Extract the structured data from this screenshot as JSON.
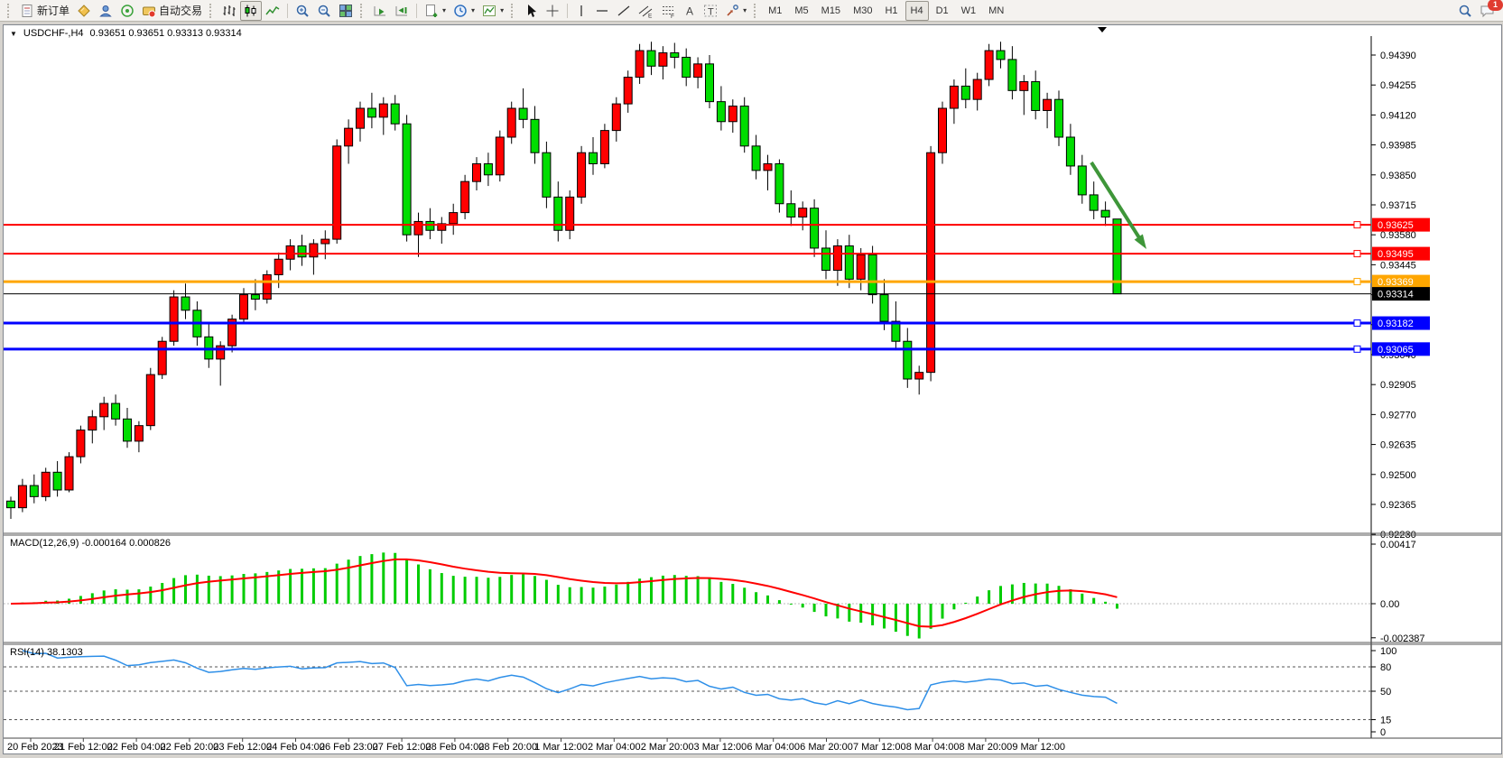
{
  "toolbar": {
    "new_order_label": "新订单",
    "auto_trading_label": "自动交易",
    "timeframes": [
      "M1",
      "M5",
      "M15",
      "M30",
      "H1",
      "H4",
      "D1",
      "W1",
      "MN"
    ],
    "active_timeframe": "H4",
    "chat_badge": "1",
    "icons": [
      "new-order",
      "market-watch",
      "profiles",
      "signals",
      "auto-trading",
      "bar-chart",
      "candlestick-chart",
      "line-chart",
      "zoom-in",
      "zoom-out",
      "tile-windows",
      "auto-scroll",
      "chart-shift",
      "new-chart",
      "periods-clock",
      "templates-indicators",
      "cursor",
      "crosshair",
      "vertical-line",
      "horizontal-line",
      "trendline",
      "equidistant-channel",
      "fibonacci-retracement",
      "text",
      "text-label",
      "arrows-objects",
      "search",
      "chat"
    ]
  },
  "chart": {
    "symbol_text": "USDCHF-,H4",
    "ohlc_text": "0.93651 0.93651 0.93313 0.93314"
  },
  "chart_data": {
    "type": "candlestick",
    "symbol": "USDCHF-",
    "timeframe": "H4",
    "current_candle": {
      "open": "0.93651",
      "high": "0.93651",
      "low": "0.93313",
      "close": "0.93314"
    },
    "price_scale": 100000,
    "colors": {
      "up_candle": "#ff0000",
      "down_candle": "#00dd00",
      "wick": "#000000",
      "macd_hist": "#00cc00",
      "macd_signal": "#ff0000",
      "rsi_line": "#2e8fe8",
      "arrow": "#3e9639",
      "axis_text": "#000000"
    },
    "price_axis": {
      "ticks": [
        "0.94390",
        "0.94255",
        "0.94120",
        "0.93985",
        "0.93850",
        "0.93715",
        "0.93580",
        "0.93445",
        "0.93310",
        "0.93175",
        "0.93040",
        "0.92905",
        "0.92770",
        "0.92635",
        "0.92500",
        "0.92365",
        "0.92230"
      ]
    },
    "hlines": [
      {
        "price": 93625,
        "tag": "0.93625",
        "color": "#ff0000",
        "width": 2,
        "handle": true
      },
      {
        "price": 93495,
        "tag": "0.93495",
        "color": "#ff0000",
        "width": 2,
        "handle": true
      },
      {
        "price": 93369,
        "tag": "0.93369",
        "color": "#ffa600",
        "width": 3,
        "handle": true
      },
      {
        "price": 93314,
        "tag": "0.93314",
        "color": "#000000",
        "width": 1,
        "handle": false,
        "current": true
      },
      {
        "price": 93182,
        "tag": "0.93182",
        "color": "#0000ff",
        "width": 3,
        "handle": true
      },
      {
        "price": 93065,
        "tag": "0.93065",
        "color": "#0000ff",
        "width": 3,
        "handle": true
      }
    ],
    "candles": [
      [
        92380,
        92400,
        92300,
        92350
      ],
      [
        92350,
        92480,
        92330,
        92450
      ],
      [
        92450,
        92500,
        92370,
        92400
      ],
      [
        92400,
        92530,
        92380,
        92510
      ],
      [
        92510,
        92560,
        92400,
        92430
      ],
      [
        92430,
        92600,
        92420,
        92580
      ],
      [
        92580,
        92720,
        92550,
        92700
      ],
      [
        92700,
        92790,
        92640,
        92760
      ],
      [
        92760,
        92850,
        92700,
        92820
      ],
      [
        92820,
        92860,
        92720,
        92750
      ],
      [
        92750,
        92800,
        92620,
        92650
      ],
      [
        92650,
        92740,
        92600,
        92720
      ],
      [
        92720,
        92980,
        92700,
        92950
      ],
      [
        92950,
        93120,
        92930,
        93100
      ],
      [
        93100,
        93330,
        93080,
        93300
      ],
      [
        93300,
        93360,
        93200,
        93240
      ],
      [
        93240,
        93280,
        93080,
        93120
      ],
      [
        93120,
        93180,
        92980,
        93020
      ],
      [
        93020,
        93100,
        92900,
        93080
      ],
      [
        93080,
        93220,
        93050,
        93200
      ],
      [
        93200,
        93340,
        93180,
        93310
      ],
      [
        93310,
        93380,
        93240,
        93290
      ],
      [
        93290,
        93420,
        93270,
        93400
      ],
      [
        93400,
        93500,
        93340,
        93470
      ],
      [
        93470,
        93560,
        93420,
        93530
      ],
      [
        93530,
        93580,
        93440,
        93480
      ],
      [
        93480,
        93560,
        93400,
        93540
      ],
      [
        93540,
        93600,
        93470,
        93560
      ],
      [
        93560,
        94010,
        93540,
        93980
      ],
      [
        93980,
        94100,
        93900,
        94060
      ],
      [
        94060,
        94180,
        94000,
        94150
      ],
      [
        94150,
        94220,
        94060,
        94110
      ],
      [
        94110,
        94200,
        94030,
        94170
      ],
      [
        94170,
        94210,
        94050,
        94080
      ],
      [
        94080,
        94120,
        93550,
        93580
      ],
      [
        93580,
        93680,
        93480,
        93640
      ],
      [
        93640,
        93700,
        93560,
        93600
      ],
      [
        93600,
        93660,
        93540,
        93630
      ],
      [
        93630,
        93720,
        93580,
        93680
      ],
      [
        93680,
        93850,
        93650,
        93820
      ],
      [
        93820,
        93930,
        93780,
        93900
      ],
      [
        93900,
        93950,
        93800,
        93850
      ],
      [
        93850,
        94050,
        93820,
        94020
      ],
      [
        94020,
        94180,
        93990,
        94150
      ],
      [
        94150,
        94240,
        94060,
        94100
      ],
      [
        94100,
        94160,
        93900,
        93950
      ],
      [
        93950,
        94000,
        93700,
        93750
      ],
      [
        93750,
        93820,
        93550,
        93600
      ],
      [
        93600,
        93780,
        93560,
        93750
      ],
      [
        93750,
        93980,
        93720,
        93950
      ],
      [
        93950,
        94020,
        93850,
        93900
      ],
      [
        93900,
        94080,
        93880,
        94050
      ],
      [
        94050,
        94200,
        94000,
        94170
      ],
      [
        94170,
        94320,
        94130,
        94290
      ],
      [
        94290,
        94440,
        94260,
        94410
      ],
      [
        94410,
        94450,
        94300,
        94340
      ],
      [
        94340,
        94430,
        94280,
        94400
      ],
      [
        94400,
        94445,
        94330,
        94380
      ],
      [
        94380,
        94420,
        94250,
        94290
      ],
      [
        94290,
        94380,
        94240,
        94350
      ],
      [
        94350,
        94390,
        94150,
        94180
      ],
      [
        94180,
        94250,
        94050,
        94090
      ],
      [
        94090,
        94190,
        94040,
        94160
      ],
      [
        94160,
        94200,
        93950,
        93980
      ],
      [
        93980,
        94030,
        93830,
        93870
      ],
      [
        93870,
        93940,
        93780,
        93900
      ],
      [
        93900,
        93920,
        93680,
        93720
      ],
      [
        93720,
        93780,
        93620,
        93660
      ],
      [
        93660,
        93730,
        93600,
        93700
      ],
      [
        93700,
        93740,
        93480,
        93520
      ],
      [
        93520,
        93600,
        93380,
        93420
      ],
      [
        93420,
        93560,
        93350,
        93530
      ],
      [
        93530,
        93580,
        93340,
        93380
      ],
      [
        93380,
        93520,
        93330,
        93490
      ],
      [
        93490,
        93530,
        93270,
        93310
      ],
      [
        93310,
        93380,
        93150,
        93190
      ],
      [
        93190,
        93280,
        93060,
        93100
      ],
      [
        93100,
        93160,
        92890,
        92930
      ],
      [
        92930,
        92990,
        92860,
        92960
      ],
      [
        92960,
        93980,
        92920,
        93950
      ],
      [
        93950,
        94180,
        93900,
        94150
      ],
      [
        94150,
        94280,
        94080,
        94250
      ],
      [
        94250,
        94330,
        94150,
        94190
      ],
      [
        94190,
        94310,
        94140,
        94280
      ],
      [
        94280,
        94440,
        94250,
        94410
      ],
      [
        94410,
        94450,
        94330,
        94370
      ],
      [
        94370,
        94430,
        94190,
        94230
      ],
      [
        94230,
        94300,
        94120,
        94270
      ],
      [
        94270,
        94320,
        94100,
        94140
      ],
      [
        94140,
        94220,
        94060,
        94190
      ],
      [
        94190,
        94230,
        93980,
        94020
      ],
      [
        94020,
        94080,
        93850,
        93890
      ],
      [
        93890,
        93940,
        93720,
        93760
      ],
      [
        93760,
        93820,
        93650,
        93690
      ],
      [
        93690,
        93730,
        93620,
        93660
      ],
      [
        93651,
        93651,
        93313,
        93314
      ]
    ],
    "time_labels": [
      "20 Feb 2023",
      "21 Feb 12:00",
      "22 Feb 04:00",
      "22 Feb 20:00",
      "23 Feb 12:00",
      "24 Feb 04:00",
      "26 Feb 23:00",
      "27 Feb 12:00",
      "28 Feb 04:00",
      "28 Feb 20:00",
      "1 Mar 12:00",
      "2 Mar 04:00",
      "2 Mar 20:00",
      "3 Mar 12:00",
      "6 Mar 04:00",
      "6 Mar 20:00",
      "7 Mar 12:00",
      "8 Mar 04:00",
      "8 Mar 20:00",
      "9 Mar 12:00"
    ],
    "macd": {
      "display": "MACD(12,26,9) -0.000164 0.000826",
      "params": [
        12,
        26,
        9
      ],
      "main_value": "-0.000164",
      "signal_value": "0.000826",
      "axis": [
        "0.00417",
        "0.00",
        "-0.002387"
      ]
    },
    "rsi": {
      "display": "RSI(14) 38.1303",
      "period": 14,
      "value": "38.1303",
      "axis_labels": [
        100,
        80,
        50,
        15,
        0
      ],
      "dashed_levels": [
        80,
        50,
        15
      ]
    },
    "annotation": {
      "type": "arrow",
      "direction": "down-right",
      "color": "#3e9639"
    }
  }
}
